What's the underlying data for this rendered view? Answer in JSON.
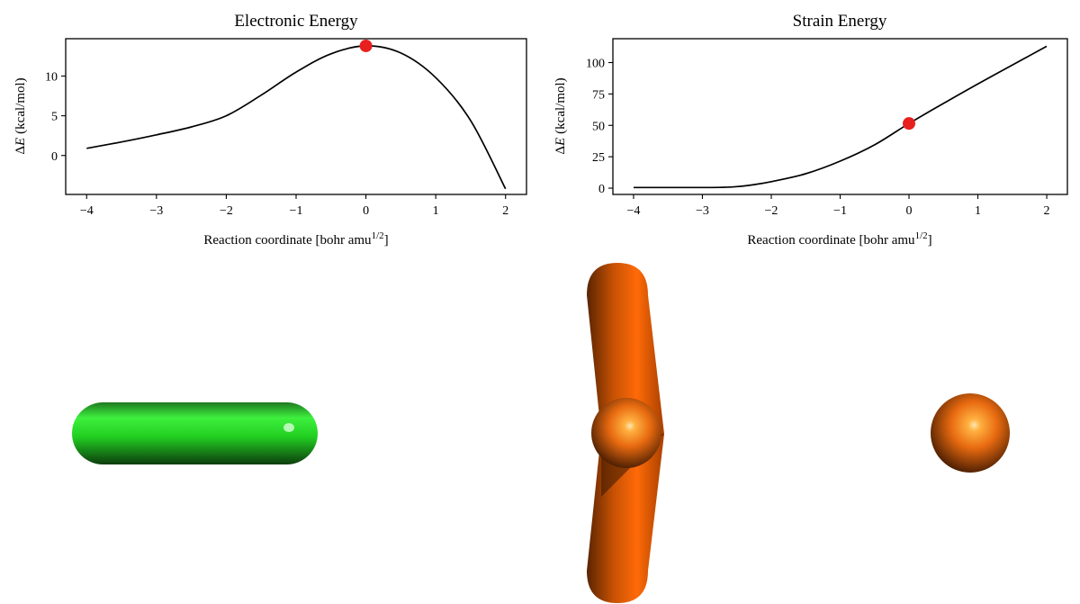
{
  "colors": {
    "curve": "#000000",
    "marker": "#e81f1f",
    "green_rod": "#2ad42a",
    "orange_molecule": "#e86a10"
  },
  "chart_data": [
    {
      "type": "line",
      "title": "Electronic Energy",
      "xlabel": "Reaction coordinate [bohr amu",
      "xlabel_sup": "1/2",
      "xlabel_close": "]",
      "ylabel": "(kcal/mol)",
      "ylabel_delta": "Δ",
      "ylabel_sym": "E",
      "xlim": [
        -4.3,
        2.3
      ],
      "ylim": [
        -4.9,
        14.7
      ],
      "xticks": [
        -4,
        -3,
        -2,
        -1,
        0,
        1,
        2
      ],
      "xtick_labels": [
        "−4",
        "−3",
        "−2",
        "−1",
        "0",
        "1",
        "2"
      ],
      "yticks": [
        0,
        5,
        10
      ],
      "ytick_labels": [
        "0",
        "5",
        "10"
      ],
      "series": [
        {
          "x": [
            -4,
            -3.5,
            -3,
            -2.5,
            -2,
            -1.5,
            -1,
            -0.5,
            0,
            0.5,
            1,
            1.5,
            2
          ],
          "y": [
            0.9,
            1.7,
            2.6,
            3.6,
            5.0,
            7.6,
            10.5,
            12.8,
            13.8,
            12.9,
            9.8,
            4.4,
            -4.2
          ]
        }
      ],
      "marker": {
        "x": 0,
        "y": 13.8
      }
    },
    {
      "type": "line",
      "title": "Strain Energy",
      "xlabel": "Reaction coordinate [bohr amu",
      "xlabel_sup": "1/2",
      "xlabel_close": "]",
      "ylabel": "(kcal/mol)",
      "ylabel_delta": "Δ",
      "ylabel_sym": "E",
      "xlim": [
        -4.3,
        2.3
      ],
      "ylim": [
        -5,
        119
      ],
      "xticks": [
        -4,
        -3,
        -2,
        -1,
        0,
        1,
        2
      ],
      "xtick_labels": [
        "−4",
        "−3",
        "−2",
        "−1",
        "0",
        "1",
        "2"
      ],
      "yticks": [
        0,
        25,
        50,
        75,
        100
      ],
      "ytick_labels": [
        "0",
        "25",
        "50",
        "75",
        "100"
      ],
      "series": [
        {
          "x": [
            -4,
            -3.5,
            -3,
            -2.75,
            -2.5,
            -2.25,
            -2,
            -1.5,
            -1,
            -0.5,
            0,
            0.5,
            1,
            1.5,
            2
          ],
          "y": [
            0.5,
            0.5,
            0.5,
            0.6,
            1.2,
            2.8,
            5.2,
            11.5,
            21.5,
            34.5,
            51.5,
            67.5,
            83.0,
            98.0,
            113.0
          ]
        }
      ],
      "marker": {
        "x": 0,
        "y": 51.5
      }
    }
  ]
}
